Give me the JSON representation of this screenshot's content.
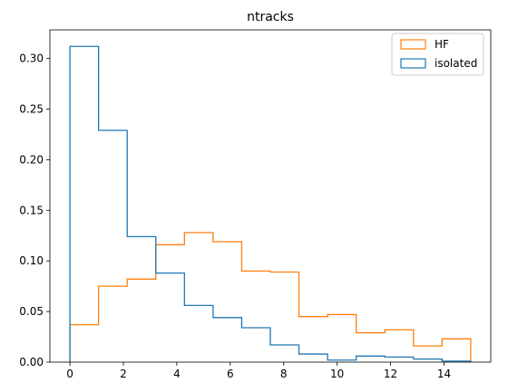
{
  "chart_data": {
    "type": "histogram-step",
    "title": "ntracks",
    "xlabel": "",
    "ylabel": "",
    "xlim": [
      -0.75,
      15.75
    ],
    "ylim": [
      0,
      0.3283
    ],
    "bin_edges": [
      0,
      1.0714,
      2.1429,
      3.2143,
      4.2857,
      5.3571,
      6.4286,
      7.5,
      8.5714,
      9.6429,
      10.7143,
      11.7857,
      12.8571,
      13.9286,
      15
    ],
    "series": [
      {
        "name": "HF",
        "color": "#ff7f0e",
        "values": [
          0.037,
          0.075,
          0.082,
          0.116,
          0.128,
          0.119,
          0.09,
          0.089,
          0.045,
          0.047,
          0.029,
          0.032,
          0.016,
          0.023
        ]
      },
      {
        "name": "isolated",
        "color": "#1f77b4",
        "values": [
          0.312,
          0.229,
          0.124,
          0.088,
          0.056,
          0.044,
          0.034,
          0.017,
          0.008,
          0.002,
          0.006,
          0.005,
          0.003,
          0.001
        ]
      }
    ],
    "x_ticks": [
      "0",
      "2",
      "4",
      "6",
      "8",
      "10",
      "12",
      "14"
    ],
    "x_tick_values": [
      0,
      2,
      4,
      6,
      8,
      10,
      12,
      14
    ],
    "y_ticks": [
      "0.00",
      "0.05",
      "0.10",
      "0.15",
      "0.20",
      "0.25",
      "0.30"
    ],
    "y_tick_values": [
      0,
      0.05,
      0.1,
      0.15,
      0.2,
      0.25,
      0.3
    ],
    "legend": {
      "position": "upper-right",
      "entries": [
        "HF",
        "isolated"
      ]
    },
    "grid": false
  }
}
